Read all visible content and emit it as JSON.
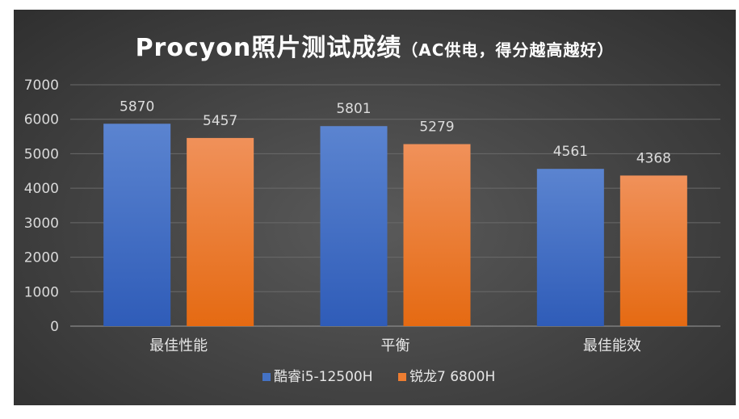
{
  "chart_data": {
    "type": "bar",
    "title": "Procyon照片测试成绩",
    "subtitle": "（AC供电，得分越高越好）",
    "categories": [
      "最佳性能",
      "平衡",
      "最佳能效"
    ],
    "series": [
      {
        "name": "酷睿i5-12500H",
        "values": [
          5870,
          5801,
          4561
        ],
        "color": "#4472c4"
      },
      {
        "name": "锐龙7 6800H",
        "values": [
          5457,
          5279,
          4368
        ],
        "color": "#ed7d31"
      }
    ],
    "ylim": [
      0,
      7000
    ],
    "yticks": [
      0,
      1000,
      2000,
      3000,
      4000,
      5000,
      6000,
      7000
    ],
    "grid": true,
    "legend": "bottom"
  }
}
